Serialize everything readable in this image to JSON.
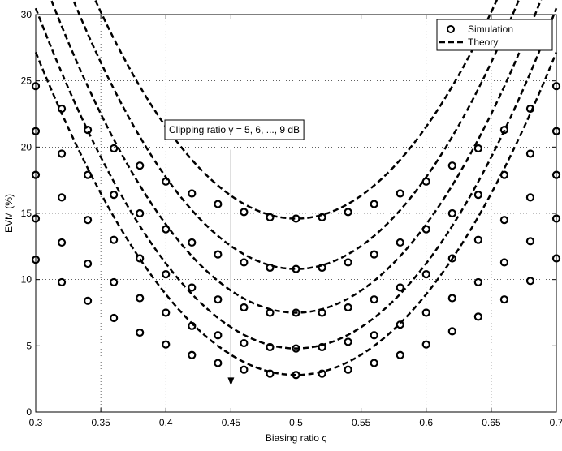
{
  "chart_data": {
    "type": "line",
    "xlabel": "Biasing ratio ς",
    "ylabel": "EVM (%)",
    "xlim": [
      0.3,
      0.7
    ],
    "ylim": [
      0,
      30
    ],
    "xticks": [
      0.3,
      0.35,
      0.4,
      0.45,
      0.5,
      0.55,
      0.6,
      0.65,
      0.7
    ],
    "yticks": [
      0,
      5,
      10,
      15,
      20,
      25,
      30
    ],
    "xtick_labels": [
      "0.3",
      "0.35",
      "0.4",
      "0.45",
      "0.5",
      "0.55",
      "0.6",
      "0.65",
      "0.7"
    ],
    "ytick_labels": [
      "0",
      "5",
      "10",
      "15",
      "20",
      "25",
      "30"
    ],
    "grid": true,
    "legend_position": "top-right",
    "legend": {
      "simulation": "Simulation",
      "theory": "Theory"
    },
    "annotation": {
      "text": "Clipping ratio γ = 5, 6, ..., 9 dB",
      "arrow_from": [
        0.45,
        19.8
      ],
      "arrow_to": [
        0.45,
        2.0
      ]
    },
    "simulation_x": [
      0.3,
      0.32,
      0.34,
      0.36,
      0.38,
      0.4,
      0.42,
      0.44,
      0.46,
      0.48,
      0.5,
      0.52,
      0.54,
      0.56,
      0.58,
      0.6,
      0.62,
      0.64,
      0.66,
      0.68,
      0.7
    ],
    "series": [
      {
        "clipping_db": 5,
        "curvature": 693,
        "theory": {
          "x": [
            0.3,
            0.7
          ],
          "y_at_min": 14.6
        },
        "simulation": [
          24.6,
          22.9,
          21.3,
          19.9,
          18.6,
          17.4,
          16.5,
          15.7,
          15.1,
          14.7,
          14.6,
          14.7,
          15.1,
          15.7,
          16.5,
          17.4,
          18.6,
          19.9,
          21.3,
          22.9,
          24.6
        ]
      },
      {
        "clipping_db": 6,
        "curvature": 693,
        "theory": {
          "x": [
            0.3,
            0.7
          ],
          "y_at_min": 10.8
        },
        "simulation": [
          21.2,
          19.5,
          17.9,
          16.4,
          15.0,
          13.8,
          12.8,
          11.9,
          11.3,
          10.9,
          10.8,
          10.9,
          11.3,
          11.9,
          12.8,
          13.8,
          15.0,
          16.4,
          17.9,
          19.5,
          21.2
        ]
      },
      {
        "clipping_db": 7,
        "curvature": 667,
        "theory": {
          "x": [
            0.3,
            0.7
          ],
          "y_at_min": 7.5
        },
        "simulation": [
          17.9,
          16.2,
          14.5,
          13.0,
          11.6,
          10.4,
          9.4,
          8.5,
          7.9,
          7.5,
          7.5,
          7.5,
          7.9,
          8.5,
          9.4,
          10.4,
          11.6,
          13.0,
          14.5,
          16.2,
          17.9
        ]
      },
      {
        "clipping_db": 8,
        "curvature": 642,
        "theory": {
          "x": [
            0.3,
            0.7
          ],
          "y_at_min": 4.8
        },
        "simulation": [
          14.6,
          12.8,
          11.2,
          9.8,
          8.6,
          7.5,
          6.5,
          5.8,
          5.2,
          4.9,
          4.8,
          4.9,
          5.3,
          5.8,
          6.6,
          7.5,
          8.6,
          9.8,
          11.3,
          12.9,
          14.6
        ]
      },
      {
        "clipping_db": 9,
        "curvature": 609,
        "theory": {
          "x": [
            0.3,
            0.7
          ],
          "y_at_min": 2.8
        },
        "simulation": [
          11.5,
          9.8,
          8.4,
          7.1,
          6.0,
          5.1,
          4.3,
          3.7,
          3.2,
          2.9,
          2.8,
          2.9,
          3.2,
          3.7,
          4.3,
          5.1,
          6.1,
          7.2,
          8.5,
          9.9,
          11.6
        ]
      }
    ]
  }
}
